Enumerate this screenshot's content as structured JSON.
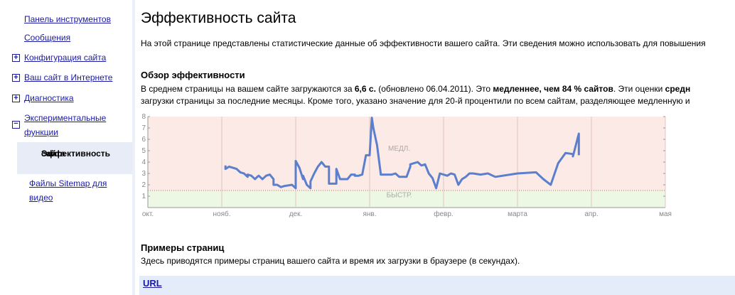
{
  "sidebar": {
    "items": [
      {
        "label": "Панель инструментов"
      },
      {
        "label": "Сообщения"
      },
      {
        "label": "Конфигурация сайта"
      },
      {
        "label": "Ваш сайт в Интернете"
      },
      {
        "label": "Диагностика"
      },
      {
        "label_line1": "Экспериментальные",
        "label_line2": "функции"
      }
    ],
    "subitems": [
      {
        "label_line1": "Эффективность",
        "label_line2": "сайта"
      },
      {
        "label_line1": "Файлы Sitemap для",
        "label_line2": "видео"
      }
    ]
  },
  "main": {
    "title": "Эффективность сайта",
    "intro": "На этой странице представлены статистические данные об эффективности вашего сайта. Эти сведения можно использовать для повышения",
    "overview_heading": "Обзор эффективности",
    "overview_p1_a": "В среднем страницы на вашем сайте загружаются за ",
    "overview_p1_b": "6,6 с.",
    "overview_p1_c": " (обновлено 06.04.2011). Это ",
    "overview_p1_d": "медленнее, чем 84 % сайтов",
    "overview_p1_e": ". Эти оценки ",
    "overview_p1_f": "средн",
    "overview_p2": "загрузки страницы за последние месяцы. Кроме того, указано значение для 20-й процентили по всем сайтам, разделяющее медленную и",
    "examples_heading": "Примеры страниц",
    "examples_text": "Здесь приводятся примеры страниц вашего сайта и время их загрузки в браузере (в секундах).",
    "url_column": "URL"
  },
  "chart_data": {
    "type": "line",
    "x_tick_labels": [
      "окт.",
      "нояб.",
      "дек.",
      "янв.",
      "февр.",
      "марта",
      "апр.",
      "мая"
    ],
    "y_ticks": [
      1,
      2,
      3,
      4,
      5,
      6,
      7,
      8
    ],
    "ylim": [
      0,
      8
    ],
    "threshold": 1.5,
    "zone_slow_label": "МЕДЛ.",
    "zone_fast_label": "БЫСТР.",
    "colors": {
      "line": "#5b7fcc",
      "slow_zone": "#fbeae6",
      "fast_zone": "#ecf8e4",
      "threshold": "#cc6666"
    },
    "series": [
      {
        "x": [
          1.05,
          1.05,
          1.1,
          1.2,
          1.25,
          1.3,
          1.35,
          1.35,
          1.4,
          1.45,
          1.48,
          1.5,
          1.55,
          1.6,
          1.65,
          1.7,
          1.7,
          1.75,
          1.8,
          1.85,
          1.95,
          2.0,
          2.0,
          2.05,
          2.1,
          2.1,
          2.15,
          2.2,
          2.2,
          2.25,
          2.3,
          2.35,
          2.4,
          2.45,
          2.45,
          2.5,
          2.55,
          2.55,
          2.6,
          2.7,
          2.75,
          2.8,
          2.8,
          2.85,
          2.9,
          2.95,
          3.0,
          3.03,
          3.05,
          3.1,
          3.15,
          3.15,
          3.2,
          3.3,
          3.35,
          3.4,
          3.45,
          3.5,
          3.55,
          3.55,
          3.6,
          3.65,
          3.7,
          3.75,
          3.8,
          3.85,
          3.9,
          3.95,
          4.05,
          4.1,
          4.15,
          4.2,
          4.25,
          4.3,
          4.35,
          4.4,
          4.5,
          4.6,
          4.7,
          5.0,
          5.25,
          5.35,
          5.45,
          5.55,
          5.65,
          5.75,
          5.75,
          5.83,
          5.83
        ],
        "values": [
          3.7,
          3.4,
          3.6,
          3.4,
          3.1,
          3.0,
          2.7,
          2.9,
          2.8,
          2.5,
          2.7,
          2.8,
          2.5,
          2.8,
          2.9,
          2.5,
          2.0,
          2.0,
          1.8,
          1.9,
          2.0,
          1.7,
          4.1,
          3.5,
          2.5,
          2.8,
          2.0,
          1.7,
          2.3,
          3.0,
          3.6,
          4.0,
          3.6,
          3.6,
          2.1,
          2.1,
          2.1,
          3.4,
          2.5,
          2.5,
          2.9,
          2.9,
          2.8,
          2.8,
          2.9,
          4.6,
          4.6,
          7.9,
          7.0,
          5.5,
          3.0,
          2.9,
          2.9,
          2.9,
          3.0,
          2.7,
          2.7,
          2.7,
          3.6,
          3.8,
          3.9,
          4.0,
          3.7,
          3.8,
          3.0,
          2.6,
          1.7,
          3.0,
          2.8,
          3.0,
          2.9,
          2.0,
          2.5,
          2.7,
          3.0,
          3.0,
          2.9,
          3.0,
          2.7,
          3.0,
          3.1,
          2.5,
          2.0,
          3.9,
          4.8,
          4.7,
          4.5,
          6.5,
          4.6
        ]
      }
    ]
  }
}
